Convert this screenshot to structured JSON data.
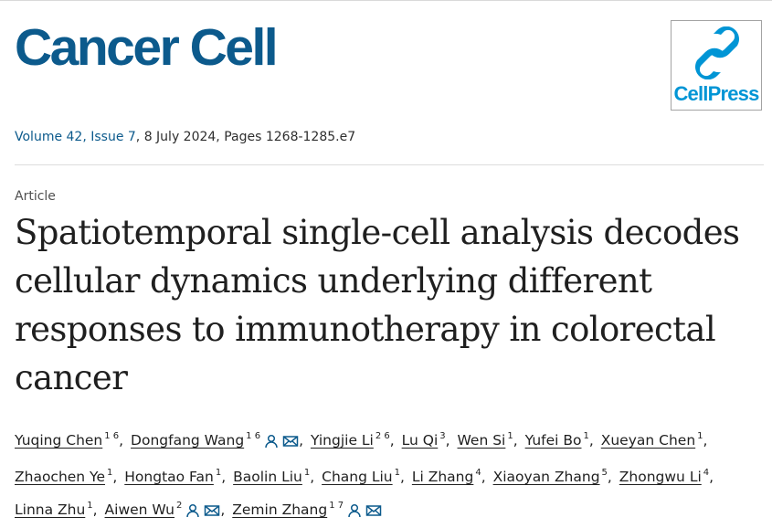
{
  "journal": {
    "title": "Cancer Cell",
    "publisher_logo_text": "CellPress"
  },
  "issue": {
    "volume_issue": "Volume 42, Issue 7",
    "date_pages": ", 8 July 2024, Pages 1268-1285.e7"
  },
  "article": {
    "type": "Article",
    "title": "Spatiotemporal single-cell analysis decodes cellular dynamics underlying different responses to immunotherapy in colorectal cancer"
  },
  "authors": [
    {
      "name": "Yuqing Chen",
      "aff": "1 6",
      "contact": false,
      "end": ","
    },
    {
      "name": "Dongfang Wang",
      "aff": "1 6",
      "contact": true,
      "end": ","
    },
    {
      "name": "Yingjie Li",
      "aff": "2 6",
      "contact": false,
      "end": ","
    },
    {
      "name": "Lu Qi",
      "aff": "3",
      "contact": false,
      "end": ","
    },
    {
      "name": "Wen Si",
      "aff": "1",
      "contact": false,
      "end": ","
    },
    {
      "name": "Yufei Bo",
      "aff": "1",
      "contact": false,
      "end": ","
    },
    {
      "name": "Xueyan Chen",
      "aff": "1",
      "contact": false,
      "end": ","
    },
    {
      "name": "Zhaochen Ye",
      "aff": "1",
      "contact": false,
      "end": ","
    },
    {
      "name": "Hongtao Fan",
      "aff": "1",
      "contact": false,
      "end": ","
    },
    {
      "name": "Baolin Liu",
      "aff": "1",
      "contact": false,
      "end": ","
    },
    {
      "name": "Chang Liu",
      "aff": "1",
      "contact": false,
      "end": ","
    },
    {
      "name": "Li Zhang",
      "aff": "4",
      "contact": false,
      "end": ","
    },
    {
      "name": "Xiaoyan Zhang",
      "aff": "5",
      "contact": false,
      "end": ","
    },
    {
      "name": "Zhongwu Li",
      "aff": "4",
      "contact": false,
      "end": ","
    },
    {
      "name": "Linna Zhu",
      "aff": "1",
      "contact": false,
      "end": ","
    },
    {
      "name": "Aiwen Wu",
      "aff": "2",
      "contact": true,
      "end": ","
    },
    {
      "name": "Zemin Zhang",
      "aff": "1 7",
      "contact": true,
      "end": ""
    }
  ],
  "icons": {
    "person": "person-icon",
    "mail": "mail-icon",
    "accent": "#0c5a8c",
    "logo_color": "#0095d5"
  }
}
